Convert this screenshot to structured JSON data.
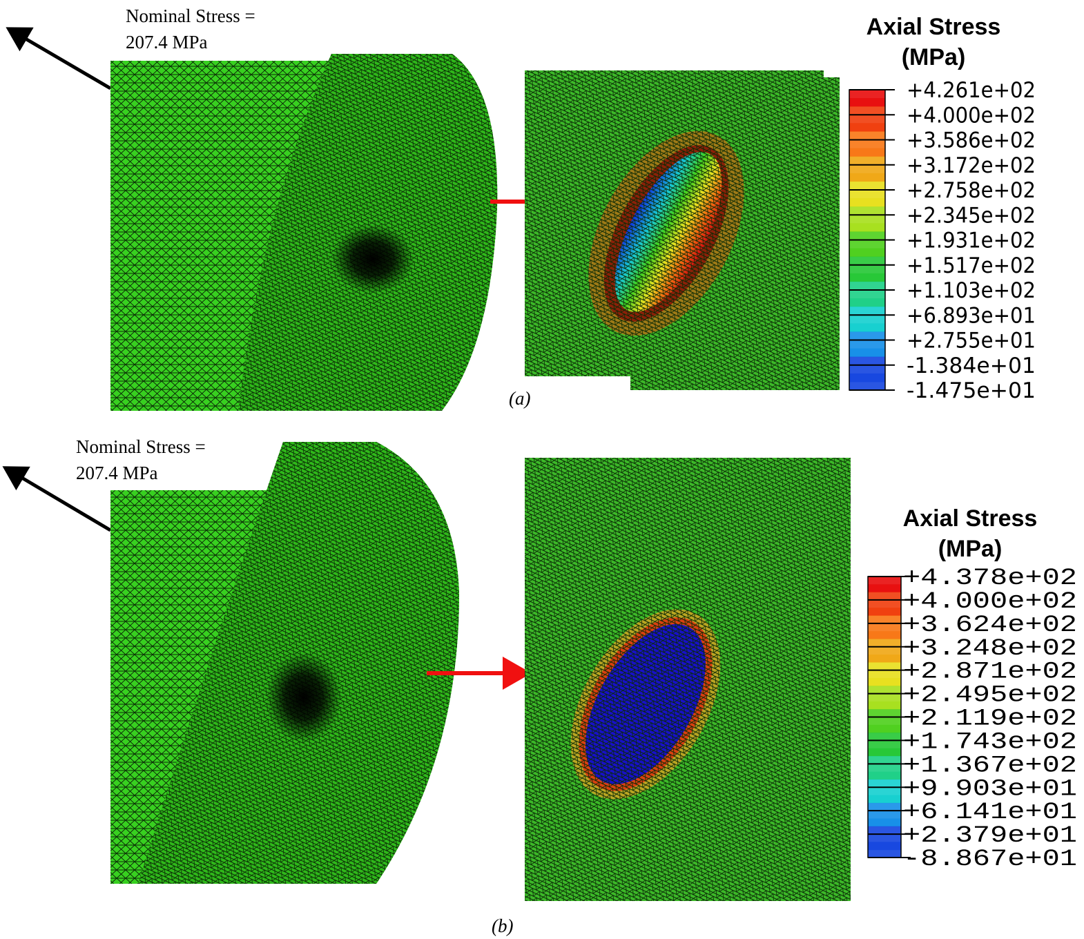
{
  "panels": [
    {
      "annotation": [
        "Nominal Stress =",
        "207.4 MPa"
      ],
      "legend": {
        "title": [
          "Axial Stress",
          "(MPa)"
        ],
        "labels": [
          "+4.261e+02",
          "+4.000e+02",
          "+3.586e+02",
          "+3.172e+02",
          "+2.758e+02",
          "+2.345e+02",
          "+1.931e+02",
          "+1.517e+02",
          "+1.103e+02",
          "+6.893e+01",
          "+2.755e+01",
          "-1.384e+01",
          "-1.475e+01"
        ]
      },
      "caption": "(a)"
    },
    {
      "annotation": [
        "Nominal Stress =",
        "207.4 MPa"
      ],
      "legend": {
        "title": [
          "Axial Stress",
          "(MPa)"
        ],
        "labels": [
          "+4.378e+02",
          "+4.000e+02",
          "+3.624e+02",
          "+3.248e+02",
          "+2.871e+02",
          "+2.495e+02",
          "+2.119e+02",
          "+1.743e+02",
          "+1.367e+02",
          "+9.903e+01",
          "+6.141e+01",
          "+2.379e+01",
          "-8.867e+01"
        ]
      },
      "caption": "(b)"
    }
  ]
}
